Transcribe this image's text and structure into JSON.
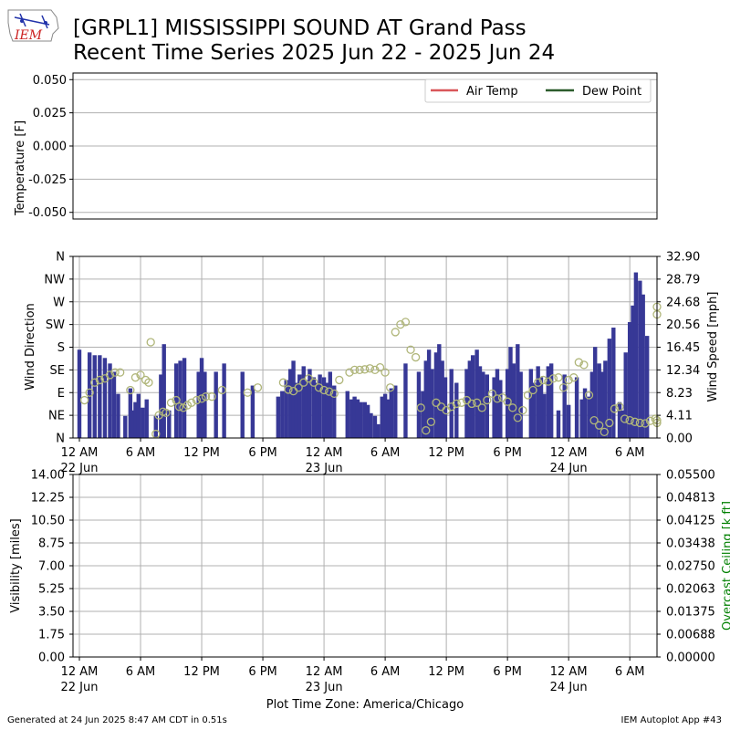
{
  "header": {
    "logo_text": "IEM",
    "title_line1": "[GRPL1] MISSISSIPPI SOUND  AT Grand Pass",
    "title_line2": "Recent Time Series 2025 Jun 22 - 2025 Jun 24"
  },
  "footer": {
    "generated": "Generated at 24 Jun 2025 8:47 AM CDT in 0.51s",
    "app": "IEM Autoplot App #43"
  },
  "colors": {
    "air_temp": "#d9575a",
    "dew_point": "#2c5c2c",
    "wind_bar": "#373896",
    "wind_dir_marker": "#b0b67a",
    "ceiling_label": "#008000",
    "grid": "#b0b0b0"
  },
  "chart_data": [
    {
      "type": "line",
      "name": "temperature-panel",
      "ylabel": "Temperature [F]",
      "ylim": [
        -0.055,
        0.055
      ],
      "yticks": [
        "0.050",
        "0.025",
        "0.000",
        "-0.025",
        "-0.050"
      ],
      "ytick_values": [
        0.05,
        0.025,
        0.0,
        -0.025,
        -0.05
      ],
      "grid": true,
      "legend_position": "top-right",
      "series": [
        {
          "name": "Air Temp",
          "values": []
        },
        {
          "name": "Dew Point",
          "values": []
        }
      ]
    },
    {
      "type": "bar",
      "name": "wind-panel",
      "ylabel_left": "Wind Direction",
      "ylabel_right": "Wind Speed [mph]",
      "y_left_ticks": [
        "N",
        "NE",
        "E",
        "SE",
        "S",
        "SW",
        "W",
        "NW",
        "N"
      ],
      "y_left_range_deg": [
        0,
        360
      ],
      "y_right_ticks": [
        "0.00",
        "4.11",
        "8.23",
        "12.34",
        "16.45",
        "20.56",
        "24.68",
        "28.79",
        "32.90"
      ],
      "y_right_range": [
        0,
        32.9
      ],
      "x_range_hours": [
        0,
        57
      ],
      "xticks": [
        "12 AM",
        "6 AM",
        "12 PM",
        "6 PM",
        "12 AM",
        "6 AM",
        "12 PM",
        "6 PM",
        "12 AM",
        "6 AM"
      ],
      "xtick_hours": [
        0,
        6,
        12,
        18,
        24,
        30,
        36,
        42,
        48,
        54
      ],
      "xtick_dates": {
        "0": "22 Jun",
        "24": "23 Jun",
        "48": "24 Jun"
      },
      "grid": true,
      "wind_speed": [
        [
          0.0,
          16.0
        ],
        [
          1.0,
          15.5
        ],
        [
          1.5,
          15.0
        ],
        [
          2.0,
          15.0
        ],
        [
          2.5,
          14.5
        ],
        [
          3.0,
          13.5
        ],
        [
          3.4,
          12.0
        ],
        [
          3.8,
          8.0
        ],
        [
          4.5,
          4.0
        ],
        [
          5.0,
          9.0
        ],
        [
          5.2,
          5.0
        ],
        [
          5.5,
          6.5
        ],
        [
          5.8,
          8.0
        ],
        [
          6.2,
          5.5
        ],
        [
          6.6,
          7.0
        ],
        [
          7.5,
          4.0
        ],
        [
          8.0,
          11.5
        ],
        [
          8.3,
          17.0
        ],
        [
          8.8,
          5.0
        ],
        [
          9.5,
          13.5
        ],
        [
          9.9,
          14.0
        ],
        [
          10.3,
          14.5
        ],
        [
          11.7,
          12.0
        ],
        [
          12.0,
          14.5
        ],
        [
          12.3,
          12.0
        ],
        [
          13.4,
          12.0
        ],
        [
          14.2,
          13.5
        ],
        [
          16.0,
          12.0
        ],
        [
          17.0,
          9.5
        ],
        [
          19.5,
          7.5
        ],
        [
          19.9,
          8.5
        ],
        [
          20.3,
          10.5
        ],
        [
          20.7,
          12.5
        ],
        [
          21.0,
          14.0
        ],
        [
          21.3,
          10.0
        ],
        [
          21.6,
          11.5
        ],
        [
          22.0,
          13.0
        ],
        [
          22.3,
          10.5
        ],
        [
          22.6,
          12.5
        ],
        [
          23.0,
          11.0
        ],
        [
          23.3,
          10.0
        ],
        [
          23.6,
          11.5
        ],
        [
          24.0,
          11.0
        ],
        [
          24.3,
          10.0
        ],
        [
          24.6,
          12.0
        ],
        [
          25.0,
          9.5
        ],
        [
          26.3,
          8.5
        ],
        [
          26.7,
          7.0
        ],
        [
          27.0,
          7.5
        ],
        [
          27.3,
          7.0
        ],
        [
          27.6,
          6.5
        ],
        [
          28.0,
          6.5
        ],
        [
          28.3,
          6.0
        ],
        [
          28.6,
          4.5
        ],
        [
          29.0,
          4.0
        ],
        [
          29.3,
          2.5
        ],
        [
          29.7,
          7.5
        ],
        [
          30.0,
          8.0
        ],
        [
          30.3,
          7.0
        ],
        [
          30.6,
          9.0
        ],
        [
          31.0,
          9.5
        ],
        [
          32.0,
          13.5
        ],
        [
          33.3,
          12.0
        ],
        [
          33.7,
          8.5
        ],
        [
          34.0,
          14.0
        ],
        [
          34.3,
          16.0
        ],
        [
          34.6,
          12.5
        ],
        [
          35.0,
          15.5
        ],
        [
          35.3,
          17.0
        ],
        [
          35.6,
          14.0
        ],
        [
          35.9,
          11.0
        ],
        [
          36.5,
          12.5
        ],
        [
          37.0,
          10.0
        ],
        [
          38.0,
          12.5
        ],
        [
          38.3,
          14.0
        ],
        [
          38.6,
          15.0
        ],
        [
          39.0,
          16.0
        ],
        [
          39.3,
          13.0
        ],
        [
          39.6,
          12.0
        ],
        [
          40.0,
          11.5
        ],
        [
          40.7,
          11.0
        ],
        [
          41.0,
          12.5
        ],
        [
          41.3,
          10.5
        ],
        [
          42.0,
          12.5
        ],
        [
          42.3,
          16.5
        ],
        [
          42.6,
          13.5
        ],
        [
          43.0,
          17.0
        ],
        [
          43.3,
          12.0
        ],
        [
          44.3,
          12.5
        ],
        [
          44.6,
          10.0
        ],
        [
          45.0,
          13.0
        ],
        [
          45.3,
          11.0
        ],
        [
          45.6,
          8.0
        ],
        [
          46.0,
          13.0
        ],
        [
          46.3,
          13.5
        ],
        [
          47.0,
          5.0
        ],
        [
          47.6,
          11.5
        ],
        [
          48.0,
          6.0
        ],
        [
          48.8,
          11.0
        ],
        [
          49.3,
          7.0
        ],
        [
          49.6,
          9.0
        ],
        [
          50.0,
          7.5
        ],
        [
          50.3,
          12.0
        ],
        [
          50.6,
          16.5
        ],
        [
          51.0,
          13.5
        ],
        [
          51.3,
          12.0
        ],
        [
          51.6,
          14.0
        ],
        [
          52.0,
          18.0
        ],
        [
          52.4,
          20.0
        ],
        [
          53.0,
          6.5
        ],
        [
          53.3,
          5.0
        ],
        [
          53.6,
          15.5
        ],
        [
          54.0,
          21.0
        ],
        [
          54.3,
          24.0
        ],
        [
          54.6,
          30.0
        ],
        [
          55.0,
          28.5
        ],
        [
          55.3,
          26.0
        ],
        [
          55.7,
          18.5
        ],
        [
          57.0,
          10.0
        ]
      ],
      "wind_direction_deg": [
        [
          0.5,
          75
        ],
        [
          1.0,
          90
        ],
        [
          1.5,
          110
        ],
        [
          2.0,
          115
        ],
        [
          2.5,
          118
        ],
        [
          3.0,
          125
        ],
        [
          3.5,
          130
        ],
        [
          4.0,
          130
        ],
        [
          5.0,
          95
        ],
        [
          5.5,
          120
        ],
        [
          6.0,
          125
        ],
        [
          6.5,
          115
        ],
        [
          6.8,
          110
        ],
        [
          7.0,
          190
        ],
        [
          7.5,
          8
        ],
        [
          7.8,
          45
        ],
        [
          8.2,
          52
        ],
        [
          8.5,
          50
        ],
        [
          9.0,
          70
        ],
        [
          9.5,
          75
        ],
        [
          9.8,
          62
        ],
        [
          10.2,
          60
        ],
        [
          10.6,
          65
        ],
        [
          11.0,
          70
        ],
        [
          11.5,
          75
        ],
        [
          12.0,
          78
        ],
        [
          12.4,
          82
        ],
        [
          13.0,
          82
        ],
        [
          14.0,
          95
        ],
        [
          16.5,
          90
        ],
        [
          17.5,
          100
        ],
        [
          20.0,
          110
        ],
        [
          20.5,
          96
        ],
        [
          21.0,
          93
        ],
        [
          21.5,
          100
        ],
        [
          22.0,
          110
        ],
        [
          22.5,
          118
        ],
        [
          23.0,
          110
        ],
        [
          23.5,
          100
        ],
        [
          24.0,
          95
        ],
        [
          24.5,
          92
        ],
        [
          25.0,
          88
        ],
        [
          25.5,
          115
        ],
        [
          26.5,
          130
        ],
        [
          27.0,
          135
        ],
        [
          27.5,
          135
        ],
        [
          28.0,
          136
        ],
        [
          28.5,
          138
        ],
        [
          29.0,
          135
        ],
        [
          29.5,
          140
        ],
        [
          30.0,
          130
        ],
        [
          30.5,
          100
        ],
        [
          31.0,
          210
        ],
        [
          31.5,
          225
        ],
        [
          32.0,
          230
        ],
        [
          32.5,
          175
        ],
        [
          33.0,
          160
        ],
        [
          33.5,
          60
        ],
        [
          34.0,
          15
        ],
        [
          34.5,
          32
        ],
        [
          35.0,
          70
        ],
        [
          35.5,
          62
        ],
        [
          36.0,
          55
        ],
        [
          36.5,
          62
        ],
        [
          37.0,
          68
        ],
        [
          37.5,
          70
        ],
        [
          38.0,
          75
        ],
        [
          38.5,
          68
        ],
        [
          39.0,
          70
        ],
        [
          39.5,
          60
        ],
        [
          40.0,
          75
        ],
        [
          40.5,
          88
        ],
        [
          41.0,
          78
        ],
        [
          41.5,
          80
        ],
        [
          42.0,
          72
        ],
        [
          42.5,
          60
        ],
        [
          43.0,
          40
        ],
        [
          43.5,
          55
        ],
        [
          44.0,
          85
        ],
        [
          44.5,
          95
        ],
        [
          45.0,
          110
        ],
        [
          45.5,
          115
        ],
        [
          46.0,
          112
        ],
        [
          46.5,
          118
        ],
        [
          47.0,
          120
        ],
        [
          47.5,
          100
        ],
        [
          48.0,
          115
        ],
        [
          48.5,
          120
        ],
        [
          49.0,
          150
        ],
        [
          49.5,
          145
        ],
        [
          50.0,
          85
        ],
        [
          50.5,
          35
        ],
        [
          51.0,
          25
        ],
        [
          51.5,
          12
        ],
        [
          52.0,
          30
        ],
        [
          52.5,
          58
        ],
        [
          53.0,
          62
        ],
        [
          53.5,
          38
        ],
        [
          54.0,
          35
        ],
        [
          54.5,
          32
        ],
        [
          55.0,
          30
        ],
        [
          55.5,
          29
        ],
        [
          56.0,
          34
        ],
        [
          56.5,
          38
        ],
        [
          57.0,
          35
        ],
        [
          57.4,
          30
        ],
        [
          57.8,
          260
        ],
        [
          58.2,
          245
        ]
      ]
    },
    {
      "type": "line",
      "name": "visibility-ceiling-panel",
      "ylabel_left": "Visibility [miles]",
      "ylabel_right": "Overcast Ceiling [k ft]",
      "y_left_ticks": [
        "0.00",
        "1.75",
        "3.50",
        "5.25",
        "7.00",
        "8.75",
        "10.50",
        "12.25",
        "14.00"
      ],
      "y_left_range": [
        0,
        14
      ],
      "y_right_ticks": [
        "0.00000",
        "0.00688",
        "0.01375",
        "0.02063",
        "0.02750",
        "0.03438",
        "0.04125",
        "0.04813",
        "0.05500"
      ],
      "y_right_range": [
        0,
        0.055
      ],
      "xlabel": "Plot Time Zone: America/Chicago",
      "xticks": [
        "12 AM",
        "6 AM",
        "12 PM",
        "6 PM",
        "12 AM",
        "6 AM",
        "12 PM",
        "6 PM",
        "12 AM",
        "6 AM"
      ],
      "xtick_dates": {
        "0": "22 Jun",
        "24": "23 Jun",
        "48": "24 Jun"
      },
      "grid": true,
      "series": []
    }
  ]
}
